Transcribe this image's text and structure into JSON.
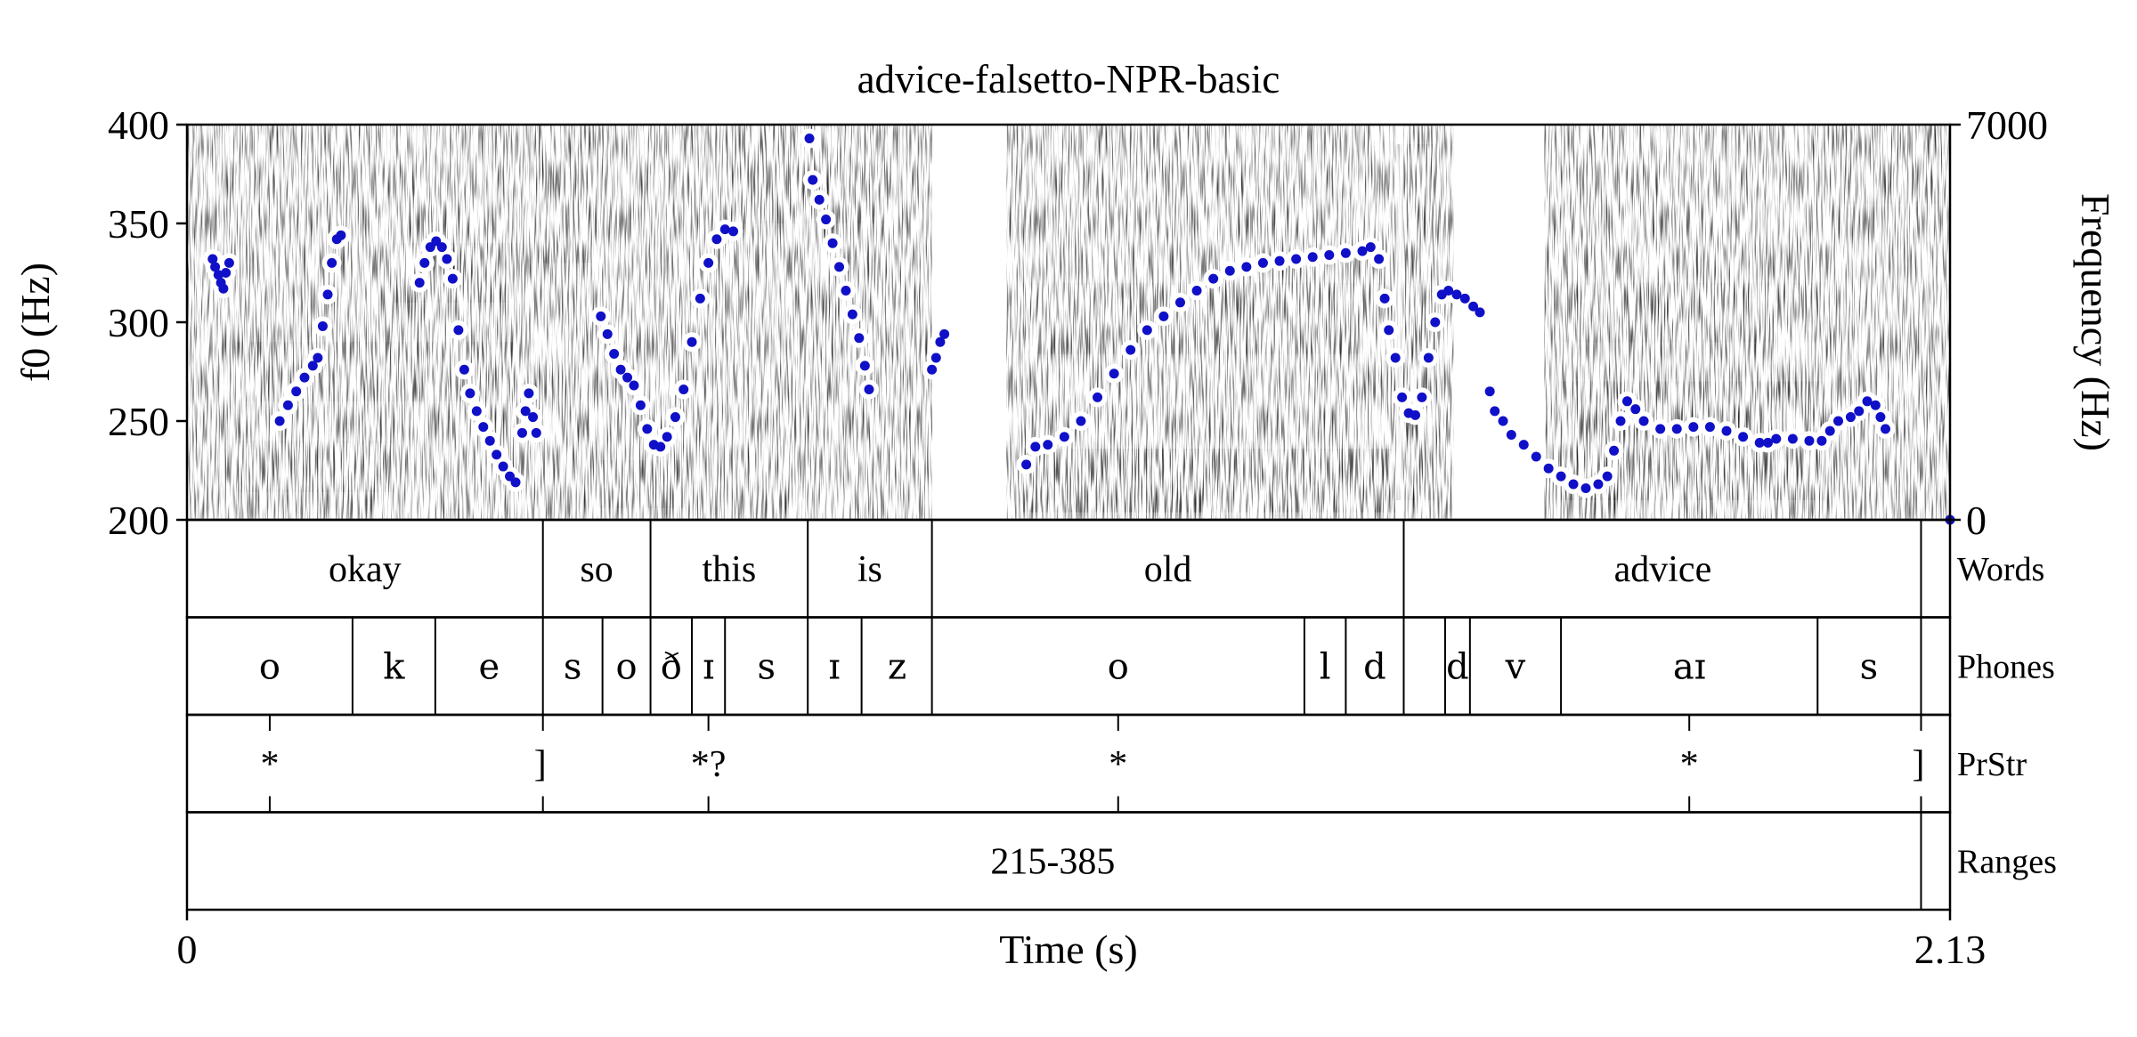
{
  "chart_data": {
    "type": "scatter",
    "title": "advice-falsetto-NPR-basic",
    "xlabel": "Time (s)",
    "ylabel": "f0 (Hz)",
    "ylabel_right": "Frequency (Hz)",
    "xlim": [
      0,
      2.13
    ],
    "ylim": [
      200,
      400
    ],
    "ylim_right": [
      0,
      7000
    ],
    "x_ticks": [
      "0",
      "2.13"
    ],
    "y_ticks": [
      "200",
      "250",
      "300",
      "350",
      "400"
    ],
    "y_ticks_right": [
      "0",
      "7000"
    ],
    "grid": false,
    "background": "spectrogram",
    "colors": {
      "pitch": "#1010c8",
      "halo": "#ffffff",
      "tier_line": "#000000"
    },
    "series": [
      {
        "type": "scatter",
        "points": [
          [
            0.031,
            332
          ],
          [
            0.034,
            328
          ],
          [
            0.038,
            324
          ],
          [
            0.041,
            320
          ],
          [
            0.044,
            317
          ],
          [
            0.047,
            325
          ],
          [
            0.051,
            330
          ],
          [
            0.112,
            250
          ],
          [
            0.122,
            258
          ],
          [
            0.132,
            265
          ],
          [
            0.142,
            272
          ],
          [
            0.152,
            278
          ],
          [
            0.158,
            282
          ],
          [
            0.164,
            298
          ],
          [
            0.17,
            314
          ],
          [
            0.175,
            330
          ],
          [
            0.181,
            342
          ],
          [
            0.186,
            344
          ],
          [
            0.281,
            320
          ],
          [
            0.287,
            330
          ],
          [
            0.294,
            338
          ],
          [
            0.301,
            341
          ],
          [
            0.308,
            338
          ],
          [
            0.314,
            332
          ],
          [
            0.321,
            322
          ],
          [
            0.328,
            296
          ],
          [
            0.335,
            276
          ],
          [
            0.342,
            264
          ],
          [
            0.35,
            255
          ],
          [
            0.358,
            247
          ],
          [
            0.366,
            240
          ],
          [
            0.374,
            233
          ],
          [
            0.382,
            227
          ],
          [
            0.39,
            222
          ],
          [
            0.397,
            219
          ],
          [
            0.405,
            244
          ],
          [
            0.409,
            255
          ],
          [
            0.413,
            264
          ],
          [
            0.418,
            252
          ],
          [
            0.422,
            244
          ],
          [
            0.5,
            303
          ],
          [
            0.508,
            294
          ],
          [
            0.516,
            284
          ],
          [
            0.524,
            276
          ],
          [
            0.532,
            272
          ],
          [
            0.54,
            268
          ],
          [
            0.548,
            258
          ],
          [
            0.556,
            246
          ],
          [
            0.564,
            238
          ],
          [
            0.572,
            237
          ],
          [
            0.58,
            242
          ],
          [
            0.59,
            252
          ],
          [
            0.6,
            266
          ],
          [
            0.61,
            290
          ],
          [
            0.62,
            312
          ],
          [
            0.63,
            330
          ],
          [
            0.64,
            342
          ],
          [
            0.65,
            347
          ],
          [
            0.66,
            346
          ],
          [
            0.752,
            393
          ],
          [
            0.756,
            372
          ],
          [
            0.764,
            362
          ],
          [
            0.772,
            352
          ],
          [
            0.78,
            340
          ],
          [
            0.788,
            328
          ],
          [
            0.796,
            316
          ],
          [
            0.804,
            304
          ],
          [
            0.812,
            292
          ],
          [
            0.819,
            278
          ],
          [
            0.824,
            266
          ],
          [
            0.9,
            276
          ],
          [
            0.905,
            282
          ],
          [
            0.91,
            290
          ],
          [
            0.915,
            294
          ],
          [
            1.014,
            228
          ],
          [
            1.025,
            237
          ],
          [
            1.04,
            238
          ],
          [
            1.06,
            242
          ],
          [
            1.08,
            250
          ],
          [
            1.1,
            262
          ],
          [
            1.12,
            274
          ],
          [
            1.14,
            286
          ],
          [
            1.16,
            296
          ],
          [
            1.18,
            303
          ],
          [
            1.2,
            310
          ],
          [
            1.22,
            316
          ],
          [
            1.24,
            322
          ],
          [
            1.26,
            326
          ],
          [
            1.28,
            328
          ],
          [
            1.3,
            330
          ],
          [
            1.32,
            331
          ],
          [
            1.34,
            332
          ],
          [
            1.36,
            333
          ],
          [
            1.38,
            334
          ],
          [
            1.4,
            335
          ],
          [
            1.42,
            336
          ],
          [
            1.43,
            338
          ],
          [
            1.44,
            332
          ],
          [
            1.447,
            312
          ],
          [
            1.452,
            296
          ],
          [
            1.46,
            282
          ],
          [
            1.468,
            262
          ],
          [
            1.476,
            254
          ],
          [
            1.484,
            253
          ],
          [
            1.492,
            262
          ],
          [
            1.5,
            282
          ],
          [
            1.508,
            300
          ],
          [
            1.516,
            314
          ],
          [
            1.524,
            316
          ],
          [
            1.534,
            314
          ],
          [
            1.544,
            312
          ],
          [
            1.554,
            308
          ],
          [
            1.562,
            305
          ],
          [
            1.574,
            265
          ],
          [
            1.58,
            255
          ],
          [
            1.59,
            250
          ],
          [
            1.6,
            243
          ],
          [
            1.615,
            238
          ],
          [
            1.63,
            232
          ],
          [
            1.645,
            226
          ],
          [
            1.66,
            222
          ],
          [
            1.675,
            218
          ],
          [
            1.69,
            216
          ],
          [
            1.705,
            218
          ],
          [
            1.716,
            222
          ],
          [
            1.724,
            235
          ],
          [
            1.732,
            250
          ],
          [
            1.74,
            260
          ],
          [
            1.75,
            256
          ],
          [
            1.76,
            250
          ],
          [
            1.78,
            246
          ],
          [
            1.8,
            246
          ],
          [
            1.82,
            247
          ],
          [
            1.84,
            247
          ],
          [
            1.86,
            245
          ],
          [
            1.88,
            242
          ],
          [
            1.9,
            239
          ],
          [
            1.91,
            239
          ],
          [
            1.92,
            241
          ],
          [
            1.94,
            241
          ],
          [
            1.96,
            240
          ],
          [
            1.975,
            240
          ],
          [
            1.985,
            245
          ],
          [
            1.995,
            250
          ],
          [
            2.01,
            252
          ],
          [
            2.02,
            255
          ],
          [
            2.03,
            260
          ],
          [
            2.04,
            258
          ],
          [
            2.046,
            252
          ],
          [
            2.052,
            246
          ]
        ]
      }
    ],
    "tiers": [
      {
        "name": "Words",
        "boundaries": [
          0.43,
          0.56,
          0.75,
          0.9,
          1.47,
          2.095
        ],
        "labels": [
          {
            "t": 0.215,
            "text": "okay"
          },
          {
            "t": 0.495,
            "text": "so"
          },
          {
            "t": 0.655,
            "text": "this"
          },
          {
            "t": 0.825,
            "text": "is"
          },
          {
            "t": 1.185,
            "text": "old"
          },
          {
            "t": 1.783,
            "text": "advice"
          }
        ]
      },
      {
        "name": "Phones",
        "boundaries": [
          0.2,
          0.3,
          0.43,
          0.502,
          0.56,
          0.61,
          0.65,
          0.75,
          0.815,
          0.9,
          1.35,
          1.4,
          1.47,
          1.52,
          1.55,
          1.66,
          1.97,
          2.095
        ],
        "labels": [
          {
            "t": 0.1,
            "text": "o"
          },
          {
            "t": 0.25,
            "text": "k"
          },
          {
            "t": 0.365,
            "text": "e"
          },
          {
            "t": 0.466,
            "text": "s"
          },
          {
            "t": 0.531,
            "text": "o"
          },
          {
            "t": 0.585,
            "text": "ð"
          },
          {
            "t": 0.63,
            "text": "ɪ"
          },
          {
            "t": 0.7,
            "text": "s"
          },
          {
            "t": 0.782,
            "text": "ɪ"
          },
          {
            "t": 0.858,
            "text": "z"
          },
          {
            "t": 1.125,
            "text": "o"
          },
          {
            "t": 1.375,
            "text": "l"
          },
          {
            "t": 1.435,
            "text": "d"
          },
          {
            "t": 1.535,
            "text": "d"
          },
          {
            "t": 1.605,
            "text": "v"
          },
          {
            "t": 1.815,
            "text": "aɪ"
          },
          {
            "t": 2.032,
            "text": "s"
          }
        ]
      },
      {
        "name": "PrStr",
        "points": [
          {
            "t": 0.1,
            "text": "*"
          },
          {
            "t": 0.43,
            "text": "]"
          },
          {
            "t": 0.63,
            "text": "*?"
          },
          {
            "t": 1.125,
            "text": "*"
          },
          {
            "t": 1.815,
            "text": "*"
          },
          {
            "t": 2.095,
            "text": "]"
          }
        ]
      },
      {
        "name": "Ranges",
        "boundaries": [
          2.095
        ],
        "labels": [
          {
            "t": 1.046,
            "text": "215-385"
          }
        ]
      }
    ]
  }
}
